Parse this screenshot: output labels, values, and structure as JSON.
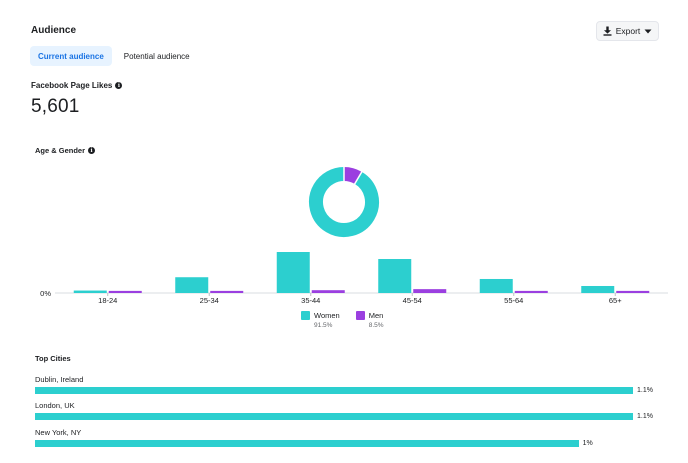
{
  "header": {
    "title": "Audience",
    "export_label": "Export"
  },
  "tabs": [
    {
      "label": "Current audience",
      "active": true
    },
    {
      "label": "Potential audience",
      "active": false
    }
  ],
  "likes": {
    "label": "Facebook Page Likes",
    "value": "5,601"
  },
  "age_gender": {
    "label": "Age & Gender"
  },
  "chart_data": {
    "type": "bar",
    "categories": [
      "18-24",
      "25-34",
      "35-44",
      "45-54",
      "55-64",
      "65+"
    ],
    "series": [
      {
        "name": "Women",
        "values": [
          0.7,
          4.5,
          11.7,
          9.7,
          4.0,
          2.0
        ],
        "color": "#2ccfcf"
      },
      {
        "name": "Men",
        "values": [
          0.6,
          0.6,
          0.8,
          1.1,
          0.6,
          0.6
        ],
        "color": "#9b3fe0"
      }
    ],
    "y_tick_labels": [
      "0%"
    ],
    "donut": {
      "women_share": 91.5,
      "men_share": 8.5
    }
  },
  "legend": [
    {
      "name": "Women",
      "pct": "91.5%",
      "color": "#2ccfcf"
    },
    {
      "name": "Men",
      "pct": "8.5%",
      "color": "#9b3fe0"
    }
  ],
  "cities": {
    "title": "Top Cities",
    "items": [
      {
        "name": "Dublin, Ireland",
        "pct": "1.1%",
        "value": 1.1
      },
      {
        "name": "London, UK",
        "pct": "1.1%",
        "value": 1.1
      },
      {
        "name": "New York, NY",
        "pct": "1%",
        "value": 1.0
      }
    ],
    "max_value": 1.1,
    "bar_color": "#2ccfcf"
  }
}
